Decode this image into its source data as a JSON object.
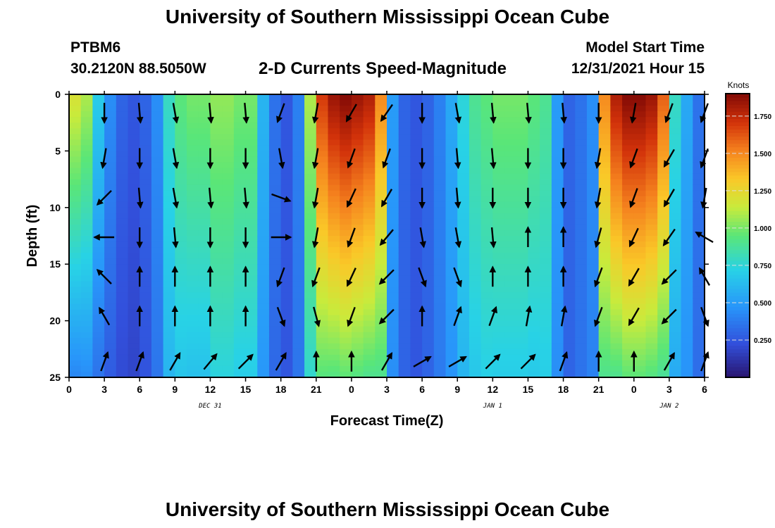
{
  "page": {
    "title_top": "University of Southern Mississippi Ocean Cube",
    "title_bottom": "University of Southern Mississippi Ocean Cube",
    "station": "PTBM6",
    "coords": "30.2120N  88.5050W",
    "plot_title": "2-D Currents Speed-Magnitude",
    "model_start_label": "Model Start Time",
    "model_start_value": "12/31/2021 Hour 15"
  },
  "chart_data": {
    "type": "heatmap",
    "title": "2-D Currents Speed-Magnitude",
    "xlabel": "Forecast Time(Z)",
    "ylabel": "Depth (ft)",
    "x_units": "hours since 00Z Dec 31",
    "xlim": [
      0,
      54
    ],
    "ylim": [
      0,
      25
    ],
    "x_tick_values": [
      0,
      3,
      6,
      9,
      12,
      15,
      18,
      21,
      24,
      27,
      30,
      33,
      36,
      39,
      42,
      45,
      48,
      51,
      54
    ],
    "x_tick_labels": [
      "0",
      "3",
      "6",
      "9",
      "12",
      "15",
      "18",
      "21",
      "0",
      "3",
      "6",
      "9",
      "12",
      "15",
      "18",
      "21",
      "0",
      "3",
      "6"
    ],
    "y_tick_values": [
      0,
      5,
      10,
      15,
      20,
      25
    ],
    "y_tick_labels": [
      "0",
      "5",
      "10",
      "15",
      "20",
      "25"
    ],
    "date_labels": [
      {
        "text": "DEC 31",
        "hour": 12
      },
      {
        "text": "JAN 1",
        "hour": 36
      },
      {
        "text": "JAN 2",
        "hour": 51
      }
    ],
    "colorbar": {
      "title": "Knots",
      "min": 0.0,
      "max": 1.9,
      "tick_values": [
        0.25,
        0.5,
        0.75,
        1.0,
        1.25,
        1.5,
        1.75
      ],
      "tick_labels": [
        "0.250",
        "0.500",
        "0.750",
        "1.000",
        "1.250",
        "1.500",
        "1.750"
      ]
    },
    "speed_profile": {
      "hours": [
        0,
        1,
        2,
        3,
        4,
        5,
        6,
        7,
        8,
        9,
        10,
        11,
        12,
        13,
        14,
        15,
        16,
        17,
        18,
        19,
        20,
        21,
        22,
        23,
        24,
        25,
        26,
        27,
        28,
        29,
        30,
        31,
        32,
        33,
        34,
        35,
        36,
        37,
        38,
        39,
        40,
        41,
        42,
        43,
        44,
        45,
        46,
        47,
        48,
        49,
        50,
        51,
        52,
        53,
        54
      ],
      "surface_knots": [
        1.2,
        1.1,
        0.7,
        0.45,
        0.3,
        0.25,
        0.3,
        0.45,
        0.8,
        0.95,
        1.0,
        1.0,
        1.05,
        1.05,
        1.0,
        1.0,
        0.6,
        0.35,
        0.25,
        0.4,
        1.1,
        1.7,
        1.85,
        1.9,
        1.85,
        1.8,
        1.5,
        0.5,
        0.3,
        0.25,
        0.3,
        0.4,
        0.55,
        0.75,
        0.9,
        0.95,
        1.0,
        1.0,
        1.0,
        0.95,
        0.9,
        0.5,
        0.3,
        0.35,
        0.45,
        1.5,
        1.8,
        1.9,
        1.9,
        1.85,
        1.6,
        0.8,
        0.55,
        0.35,
        0.3
      ],
      "depth_decay": [
        0.35,
        0.4,
        0.5,
        0.6,
        0.7,
        0.75,
        0.8,
        0.8,
        0.75,
        0.7,
        0.65,
        0.65,
        0.7,
        0.7,
        0.7,
        0.7,
        0.8,
        0.9,
        1.0,
        0.9,
        0.7,
        0.55,
        0.5,
        0.5,
        0.5,
        0.5,
        0.6,
        0.9,
        1.0,
        1.0,
        1.0,
        0.95,
        0.85,
        0.8,
        0.75,
        0.75,
        0.7,
        0.7,
        0.7,
        0.72,
        0.78,
        0.9,
        1.0,
        1.0,
        0.9,
        0.6,
        0.5,
        0.5,
        0.5,
        0.5,
        0.55,
        0.7,
        0.85,
        0.95,
        1.0
      ]
    },
    "vector_hours": [
      3,
      6,
      9,
      12,
      15,
      18,
      21,
      24,
      27,
      30,
      33,
      36,
      39,
      42,
      45,
      48,
      51,
      54
    ],
    "vector_depths": [
      1,
      5,
      8.5,
      12,
      15.5,
      19,
      23
    ],
    "vector_directions_deg": [
      [
        180,
        175,
        170,
        175,
        175,
        200,
        190,
        210,
        215,
        180,
        170,
        175,
        175,
        175,
        180,
        190,
        200,
        200
      ],
      [
        190,
        180,
        170,
        180,
        180,
        170,
        190,
        200,
        200,
        180,
        175,
        175,
        180,
        180,
        190,
        200,
        210,
        200
      ],
      [
        225,
        175,
        170,
        175,
        175,
        110,
        190,
        205,
        210,
        180,
        175,
        180,
        180,
        180,
        190,
        200,
        210,
        190
      ],
      [
        270,
        180,
        175,
        180,
        180,
        90,
        190,
        200,
        220,
        170,
        170,
        175,
        0,
        0,
        195,
        205,
        215,
        300
      ],
      [
        315,
        0,
        0,
        0,
        0,
        200,
        200,
        205,
        225,
        160,
        160,
        0,
        0,
        0,
        200,
        210,
        225,
        330
      ],
      [
        330,
        0,
        0,
        0,
        0,
        160,
        165,
        200,
        225,
        0,
        20,
        20,
        10,
        10,
        200,
        210,
        225,
        160
      ],
      [
        20,
        20,
        30,
        40,
        45,
        30,
        0,
        0,
        30,
        60,
        60,
        45,
        45,
        20,
        0,
        0,
        30,
        20
      ]
    ]
  }
}
